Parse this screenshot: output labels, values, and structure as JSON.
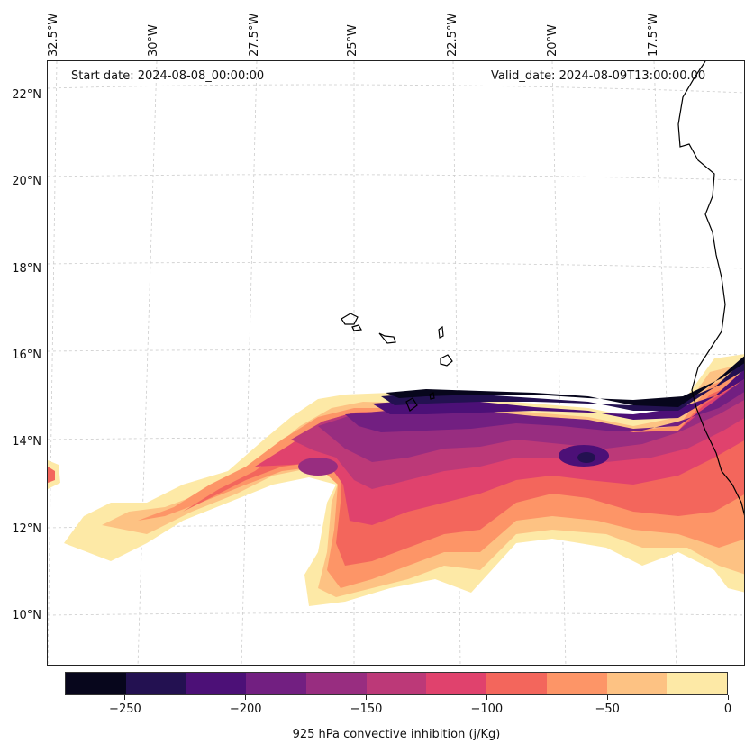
{
  "map": {
    "start_date": "Start date: 2024-08-08_00:00:00",
    "valid_date": "Valid_date: 2024-08-09T13:00:00.00",
    "lon_labels": [
      "32.5°W",
      "30°W",
      "27.5°W",
      "25°W",
      "22.5°W",
      "20°W",
      "17.5°W"
    ],
    "lat_labels": [
      "22°N",
      "20°N",
      "18°N",
      "16°N",
      "14°N",
      "12°N",
      "10°N"
    ],
    "variable": "925 hPa convective inhibition",
    "colormap": "magma",
    "colors": [
      "#07061c",
      "#231151",
      "#4c1077",
      "#721f81",
      "#982d80",
      "#bc3978",
      "#e0426d",
      "#f3665c",
      "#fd9567",
      "#fdc283",
      "#fde9a6"
    ]
  },
  "colorbar": {
    "title": "925 hPa convective inhibition (j/Kg)",
    "tick_labels": [
      "−250",
      "−200",
      "−150",
      "−100",
      "−50",
      "0"
    ],
    "min": -275,
    "max": 0,
    "step": 25
  }
}
